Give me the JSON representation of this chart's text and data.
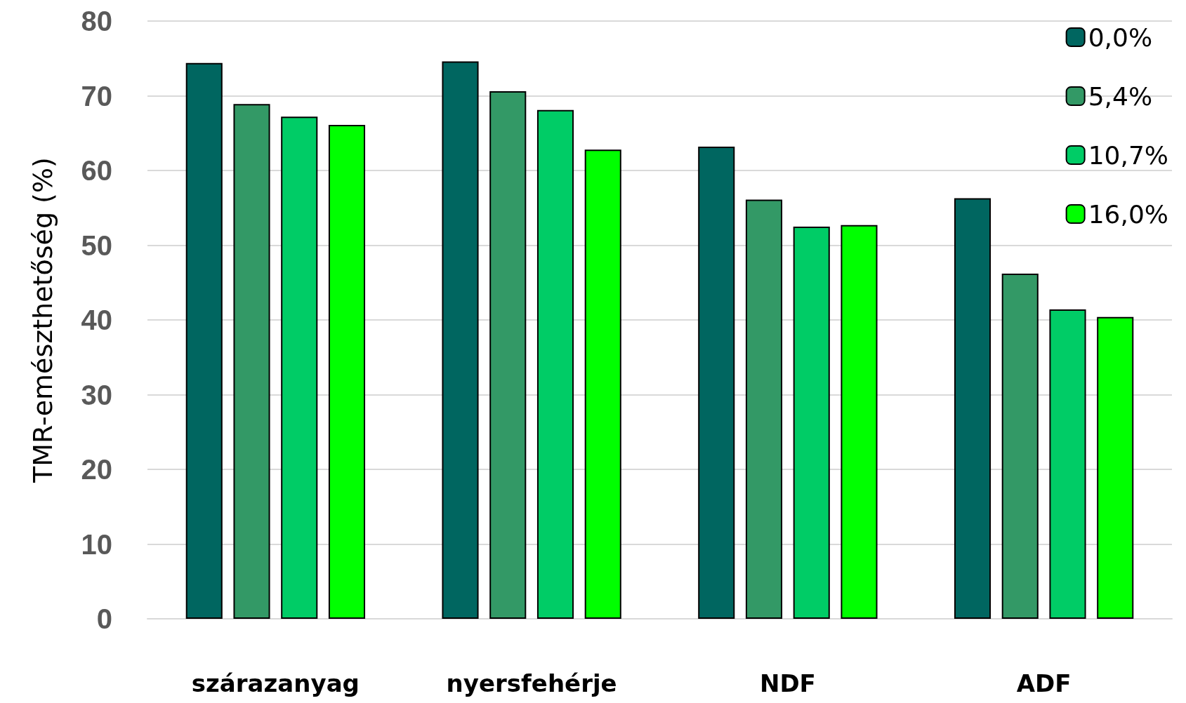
{
  "chart_data": {
    "type": "bar",
    "ylabel": "TMR-emészthetőség (%)",
    "categories": [
      "szárazanyag",
      "nyersfehérje",
      "NDF",
      "ADF"
    ],
    "series": [
      {
        "name": "0,0%",
        "color": "#006660",
        "values": [
          74.4,
          74.6,
          63.2,
          56.3
        ]
      },
      {
        "name": "5,4%",
        "color": "#339966",
        "values": [
          68.9,
          70.6,
          56.1,
          46.2
        ]
      },
      {
        "name": "10,7%",
        "color": "#00cc66",
        "values": [
          67.2,
          68.1,
          52.5,
          41.4
        ]
      },
      {
        "name": "16,0%",
        "color": "#00ff00",
        "values": [
          66.1,
          62.8,
          52.7,
          40.4
        ]
      }
    ],
    "ylim": [
      0,
      80
    ],
    "yticks": [
      0,
      10,
      20,
      30,
      40,
      50,
      60,
      70,
      80
    ],
    "grid": "y",
    "legend": "top right"
  }
}
